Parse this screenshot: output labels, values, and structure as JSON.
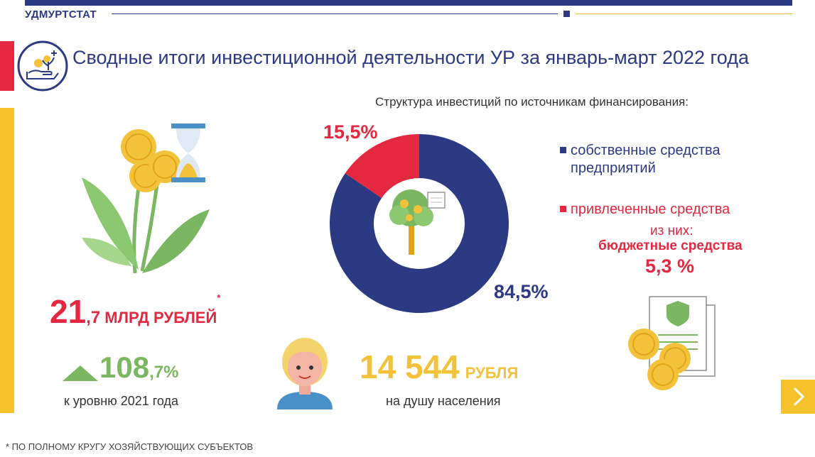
{
  "header": {
    "org": "УДМУРТСТАТ"
  },
  "title": "Сводные итоги инвестиционной деятельности УР за январь-март 2022 года",
  "colors": {
    "blue": "#2b3a82",
    "red": "#e3283f",
    "green": "#7bb661",
    "yellow": "#f3c23b"
  },
  "icons": [
    "investment-hand-icon",
    "coins-flower-icon",
    "hourglass-icon",
    "money-tree-icon",
    "person-icon",
    "document-shield-icon",
    "next-arrow-icon"
  ],
  "chart_data": {
    "type": "pie",
    "title": "Структура инвестиций по источникам финансирования:",
    "donut": true,
    "series": [
      {
        "name": "собственные средства предприятий",
        "value": 84.5,
        "label": "84,5%",
        "color": "#2b3a82"
      },
      {
        "name": "привлеченные средства",
        "value": 15.5,
        "label": "15,5%",
        "color": "#e3283f"
      }
    ]
  },
  "legend": {
    "own_line1": "собственные средства",
    "own_line2": "предприятий",
    "attracted": "привлеченные средства",
    "of_which": "из них:",
    "budget": "бюджетные средства",
    "budget_pct": "5,3 %"
  },
  "stats": {
    "total_int": "21",
    "total_dec": ",7",
    "total_unit": "МЛРД РУБЛЕЙ",
    "total_note": "*",
    "growth_int": "108",
    "growth_dec": ",7%",
    "growth_caption": "к уровню 2021 года",
    "per_capita_value": "14 544",
    "per_capita_unit": "РУБЛЯ",
    "per_capita_caption": "на душу населения"
  },
  "footnote": "* ПО ПОЛНОМУ КРУГУ ХОЗЯЙСТВУЮЩИХ СУБЪЕКТОВ"
}
